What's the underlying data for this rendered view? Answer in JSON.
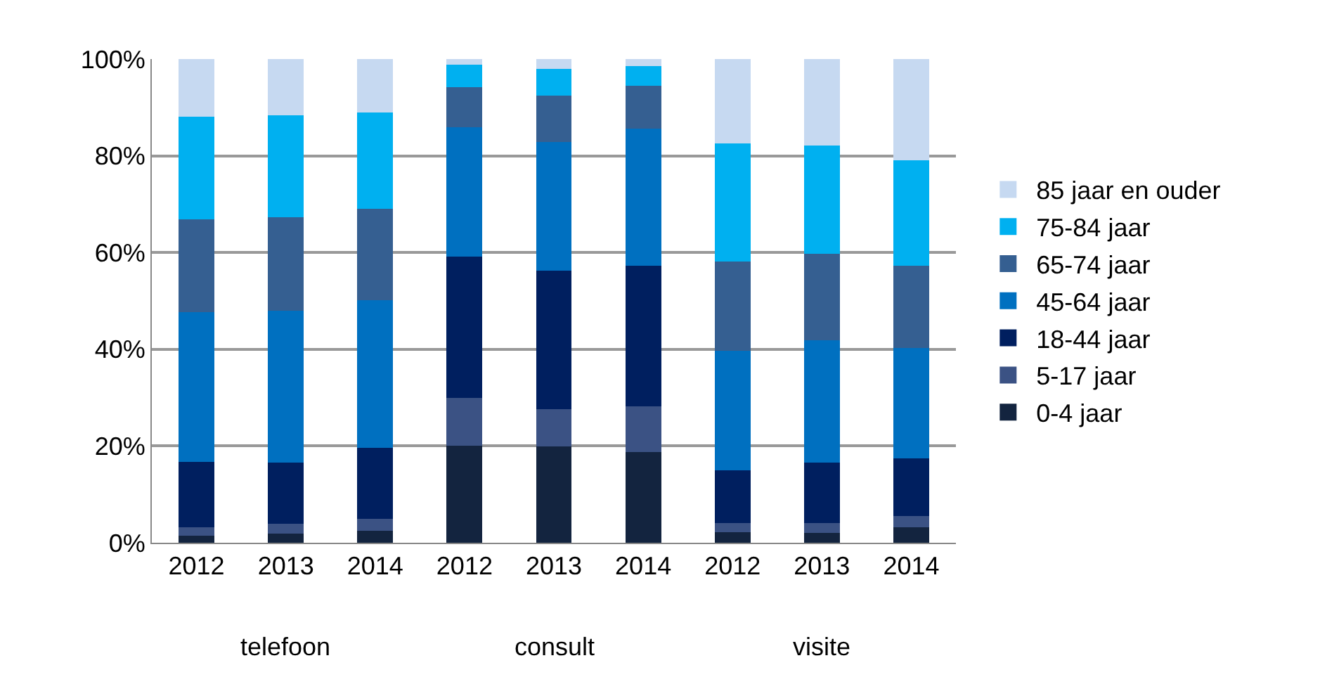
{
  "chart_data": {
    "type": "bar",
    "stacked": true,
    "categories": [
      "2012",
      "2013",
      "2014",
      "2012",
      "2013",
      "2014",
      "2012",
      "2013",
      "2014"
    ],
    "series": [
      {
        "name": "0-4 jaar",
        "color": "#13243f",
        "values": [
          1.5,
          1.9,
          2.5,
          20.1,
          19.9,
          18.7,
          2.2,
          2.1,
          3.2
        ]
      },
      {
        "name": "5-17 jaar",
        "color": "#3b5284",
        "values": [
          1.7,
          2.0,
          2.4,
          9.9,
          7.7,
          9.5,
          1.9,
          2.0,
          2.3
        ]
      },
      {
        "name": "18-44 jaar",
        "color": "#001f5f",
        "values": [
          13.5,
          12.6,
          14.7,
          29.1,
          28.6,
          29.0,
          10.9,
          12.4,
          12.0
        ]
      },
      {
        "name": "45-64 jaar",
        "color": "#0070c0",
        "values": [
          31.0,
          31.4,
          30.5,
          26.8,
          26.6,
          28.4,
          24.7,
          25.4,
          22.8
        ]
      },
      {
        "name": "65-74 jaar",
        "color": "#355f91",
        "values": [
          19.2,
          19.4,
          18.9,
          8.3,
          9.6,
          8.9,
          18.4,
          17.8,
          16.9
        ]
      },
      {
        "name": "75-84 jaar",
        "color": "#00b0f0",
        "values": [
          21.2,
          21.1,
          19.9,
          4.6,
          5.5,
          4.1,
          24.5,
          22.4,
          21.9
        ]
      },
      {
        "name": "85 jaar en ouder",
        "color": "#c6d9f1",
        "values": [
          11.9,
          11.6,
          11.1,
          1.2,
          2.1,
          1.4,
          17.4,
          17.9,
          20.9
        ]
      }
    ],
    "annotations": [
      "telefoon",
      "consult",
      "visite"
    ],
    "ylim": [
      0,
      100
    ],
    "yticks": [
      {
        "value": 0,
        "label": "0%"
      },
      {
        "value": 20,
        "label": "20%"
      },
      {
        "value": 40,
        "label": "40%"
      },
      {
        "value": 60,
        "label": "60%"
      },
      {
        "value": 80,
        "label": "80%"
      },
      {
        "value": 100,
        "label": "100%"
      }
    ],
    "grid": "y",
    "legend": "right"
  }
}
